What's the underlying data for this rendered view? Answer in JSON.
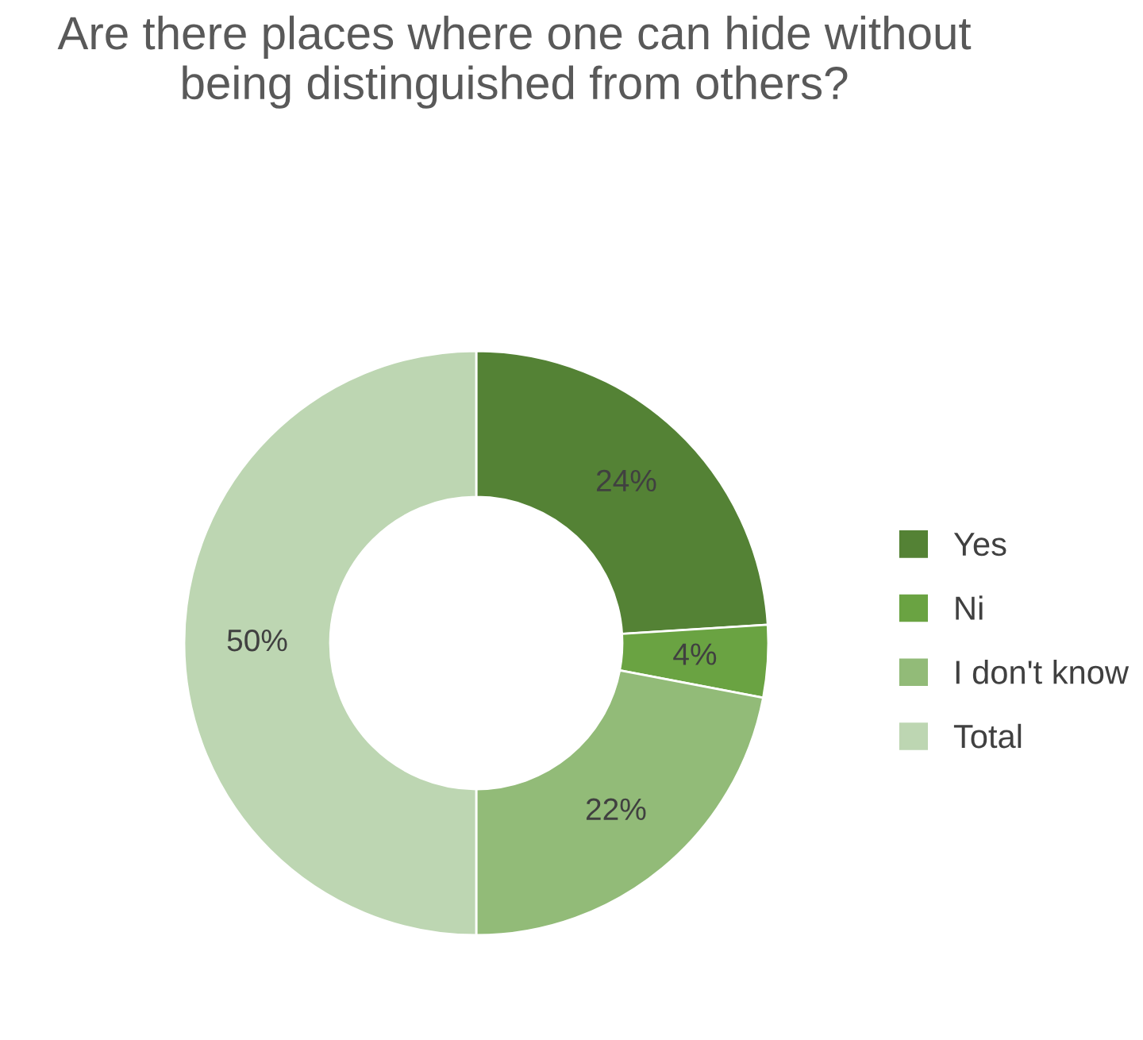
{
  "chart_data": {
    "type": "donut",
    "title": "Are there places where one can hide without being distinguished from others?",
    "categories": [
      "Yes",
      "Ni",
      "I don't know",
      "Total"
    ],
    "values": [
      24,
      4,
      22,
      50
    ],
    "colors": [
      "#548235",
      "#6aa342",
      "#92bb78",
      "#bdd6b2"
    ],
    "value_labels": [
      "24%",
      "4%",
      "22%",
      "50%"
    ],
    "legend": "right"
  }
}
